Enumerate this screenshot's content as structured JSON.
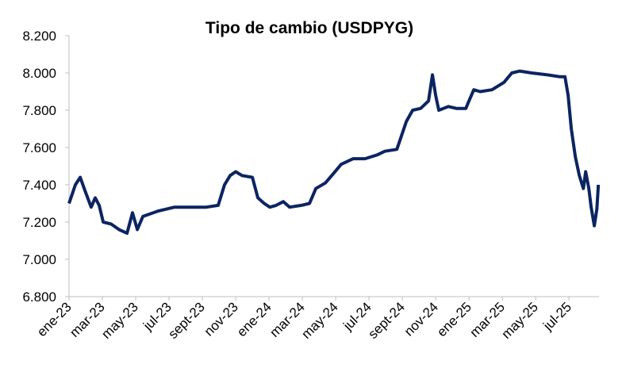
{
  "chart_data": {
    "type": "line",
    "title": "Tipo de cambio (USDPYG)",
    "series": [
      {
        "name": "USDPYG",
        "color": "#0c2461",
        "x": [
          0,
          0.38,
          0.67,
          0.95,
          1.33,
          1.57,
          1.81,
          2.05,
          2.52,
          3,
          3.48,
          3.81,
          4.1,
          4.43,
          5.38,
          6.33,
          7.29,
          8.24,
          8.95,
          9.33,
          9.67,
          10,
          10.38,
          11,
          11.33,
          11.71,
          12.05,
          12.43,
          12.86,
          13.24,
          13.95,
          14.43,
          14.81,
          15.38,
          15.86,
          16.33,
          17.05,
          17.76,
          18.48,
          18.95,
          19.67,
          19.9,
          20.24,
          20.62,
          21.1,
          21.57,
          21.81,
          22,
          22.19,
          22.76,
          23.24,
          23.81,
          23.95,
          24.29,
          24.67,
          25.38,
          26.1,
          26.57,
          27.05,
          27.76,
          28.71,
          29.43,
          29.76,
          29.95,
          30.14,
          30.38,
          30.62,
          30.86,
          31,
          31.19,
          31.33,
          31.52,
          31.67,
          31.76
        ],
        "values": [
          7300,
          7400,
          7440,
          7370,
          7280,
          7330,
          7290,
          7200,
          7190,
          7160,
          7140,
          7250,
          7160,
          7230,
          7260,
          7280,
          7280,
          7280,
          7290,
          7400,
          7450,
          7470,
          7450,
          7440,
          7330,
          7300,
          7280,
          7290,
          7310,
          7280,
          7290,
          7300,
          7380,
          7410,
          7460,
          7510,
          7540,
          7540,
          7560,
          7580,
          7590,
          7650,
          7740,
          7800,
          7810,
          7850,
          7990,
          7880,
          7800,
          7820,
          7810,
          7810,
          7840,
          7910,
          7900,
          7910,
          7950,
          8000,
          8010,
          8000,
          7990,
          7980,
          7980,
          7880,
          7700,
          7550,
          7450,
          7380,
          7470,
          7380,
          7280,
          7180,
          7270,
          7400
        ]
      }
    ],
    "xlim": [
      0,
      31.8
    ],
    "xticks": [
      {
        "value": 0,
        "label": "ene-23"
      },
      {
        "value": 2,
        "label": "mar-23"
      },
      {
        "value": 4,
        "label": "may-23"
      },
      {
        "value": 6,
        "label": "jul-23"
      },
      {
        "value": 8,
        "label": "sept-23"
      },
      {
        "value": 10,
        "label": "nov-23"
      },
      {
        "value": 12,
        "label": "ene-24"
      },
      {
        "value": 14,
        "label": "mar-24"
      },
      {
        "value": 16,
        "label": "may-24"
      },
      {
        "value": 18,
        "label": "jul-24"
      },
      {
        "value": 20,
        "label": "sept-24"
      },
      {
        "value": 22,
        "label": "nov-24"
      },
      {
        "value": 24,
        "label": "ene-25"
      },
      {
        "value": 26,
        "label": "mar-25"
      },
      {
        "value": 28,
        "label": "may-25"
      },
      {
        "value": 30,
        "label": "jul-25"
      }
    ],
    "ylim": [
      6800,
      8200
    ],
    "yticks": [
      {
        "value": 6800,
        "label": "6.800"
      },
      {
        "value": 7000,
        "label": "7.000"
      },
      {
        "value": 7200,
        "label": "7.200"
      },
      {
        "value": 7400,
        "label": "7.400"
      },
      {
        "value": 7600,
        "label": "7.600"
      },
      {
        "value": 7800,
        "label": "7.800"
      },
      {
        "value": 8000,
        "label": "8.000"
      },
      {
        "value": 8200,
        "label": "8.200"
      }
    ],
    "grid": false
  }
}
